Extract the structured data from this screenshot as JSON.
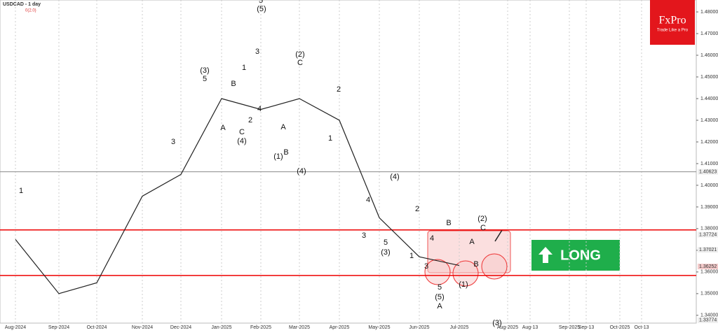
{
  "chart_data": {
    "type": "line",
    "title": "USDCAD - 1 day",
    "subtitle": "0(2.0)",
    "categories": [
      "Aug-2024",
      "Sep-2024",
      "Oct-2024",
      "Nov-2024",
      "Dec-2024",
      "Jan-2025",
      "Feb-2025",
      "Mar-2025",
      "Apr-2025",
      "May-2025",
      "Jun-2025",
      "Jul-2025",
      "Aug-2025",
      "Aug-13",
      "Sep-2025",
      "Sep-13",
      "Oct-2025",
      "Oct-13"
    ],
    "values": [
      1.375,
      1.35,
      1.355,
      1.395,
      1.405,
      1.44,
      1.435,
      1.44,
      1.43,
      1.385,
      1.367,
      1.363,
      null,
      null,
      null,
      null,
      null,
      null
    ],
    "color": "#222222",
    "ylim": [
      1.3364,
      1.4855
    ],
    "yticks": [
      {
        "value": 1.48,
        "label": "1.48000"
      },
      {
        "value": 1.47,
        "label": "1.47000"
      },
      {
        "value": 1.46,
        "label": "1.46000"
      },
      {
        "value": 1.45,
        "label": "1.45000"
      },
      {
        "value": 1.44,
        "label": "1.44000"
      },
      {
        "value": 1.43,
        "label": "1.43000"
      },
      {
        "value": 1.42,
        "label": "1.42000"
      },
      {
        "value": 1.41,
        "label": "1.41000"
      },
      {
        "value": 1.4,
        "label": "1.40000"
      },
      {
        "value": 1.39,
        "label": "1.39000"
      },
      {
        "value": 1.38,
        "label": "1.38000"
      },
      {
        "value": 1.37,
        "label": "1.37000"
      },
      {
        "value": 1.36,
        "label": "1.36000"
      },
      {
        "value": 1.35,
        "label": "1.35000"
      },
      {
        "value": 1.34,
        "label": "1.34000"
      }
    ],
    "price_labels": [
      1.40623,
      1.37724,
      1.37021,
      1.36252,
      1.33774
    ],
    "resistance": 1.3794,
    "support": 1.3584,
    "annotations": [
      "(3)",
      "5",
      "1",
      "3",
      "1",
      "(4)",
      "C",
      "A",
      "B",
      "2",
      "4",
      "(5)",
      "5",
      "3",
      "(2)",
      "C",
      "(4)",
      "A",
      "B",
      "(1)",
      "2",
      "1",
      "(4)",
      "4",
      "3",
      "5",
      "(3)",
      "2",
      "1",
      "B",
      "4",
      "3",
      "5",
      "(5)",
      "A",
      "(2)",
      "C",
      "A",
      "B",
      "(1)",
      "(3)"
    ],
    "logo": "FxPro",
    "logo_tagline": "Trade Like a Pro",
    "signal": "LONG"
  }
}
